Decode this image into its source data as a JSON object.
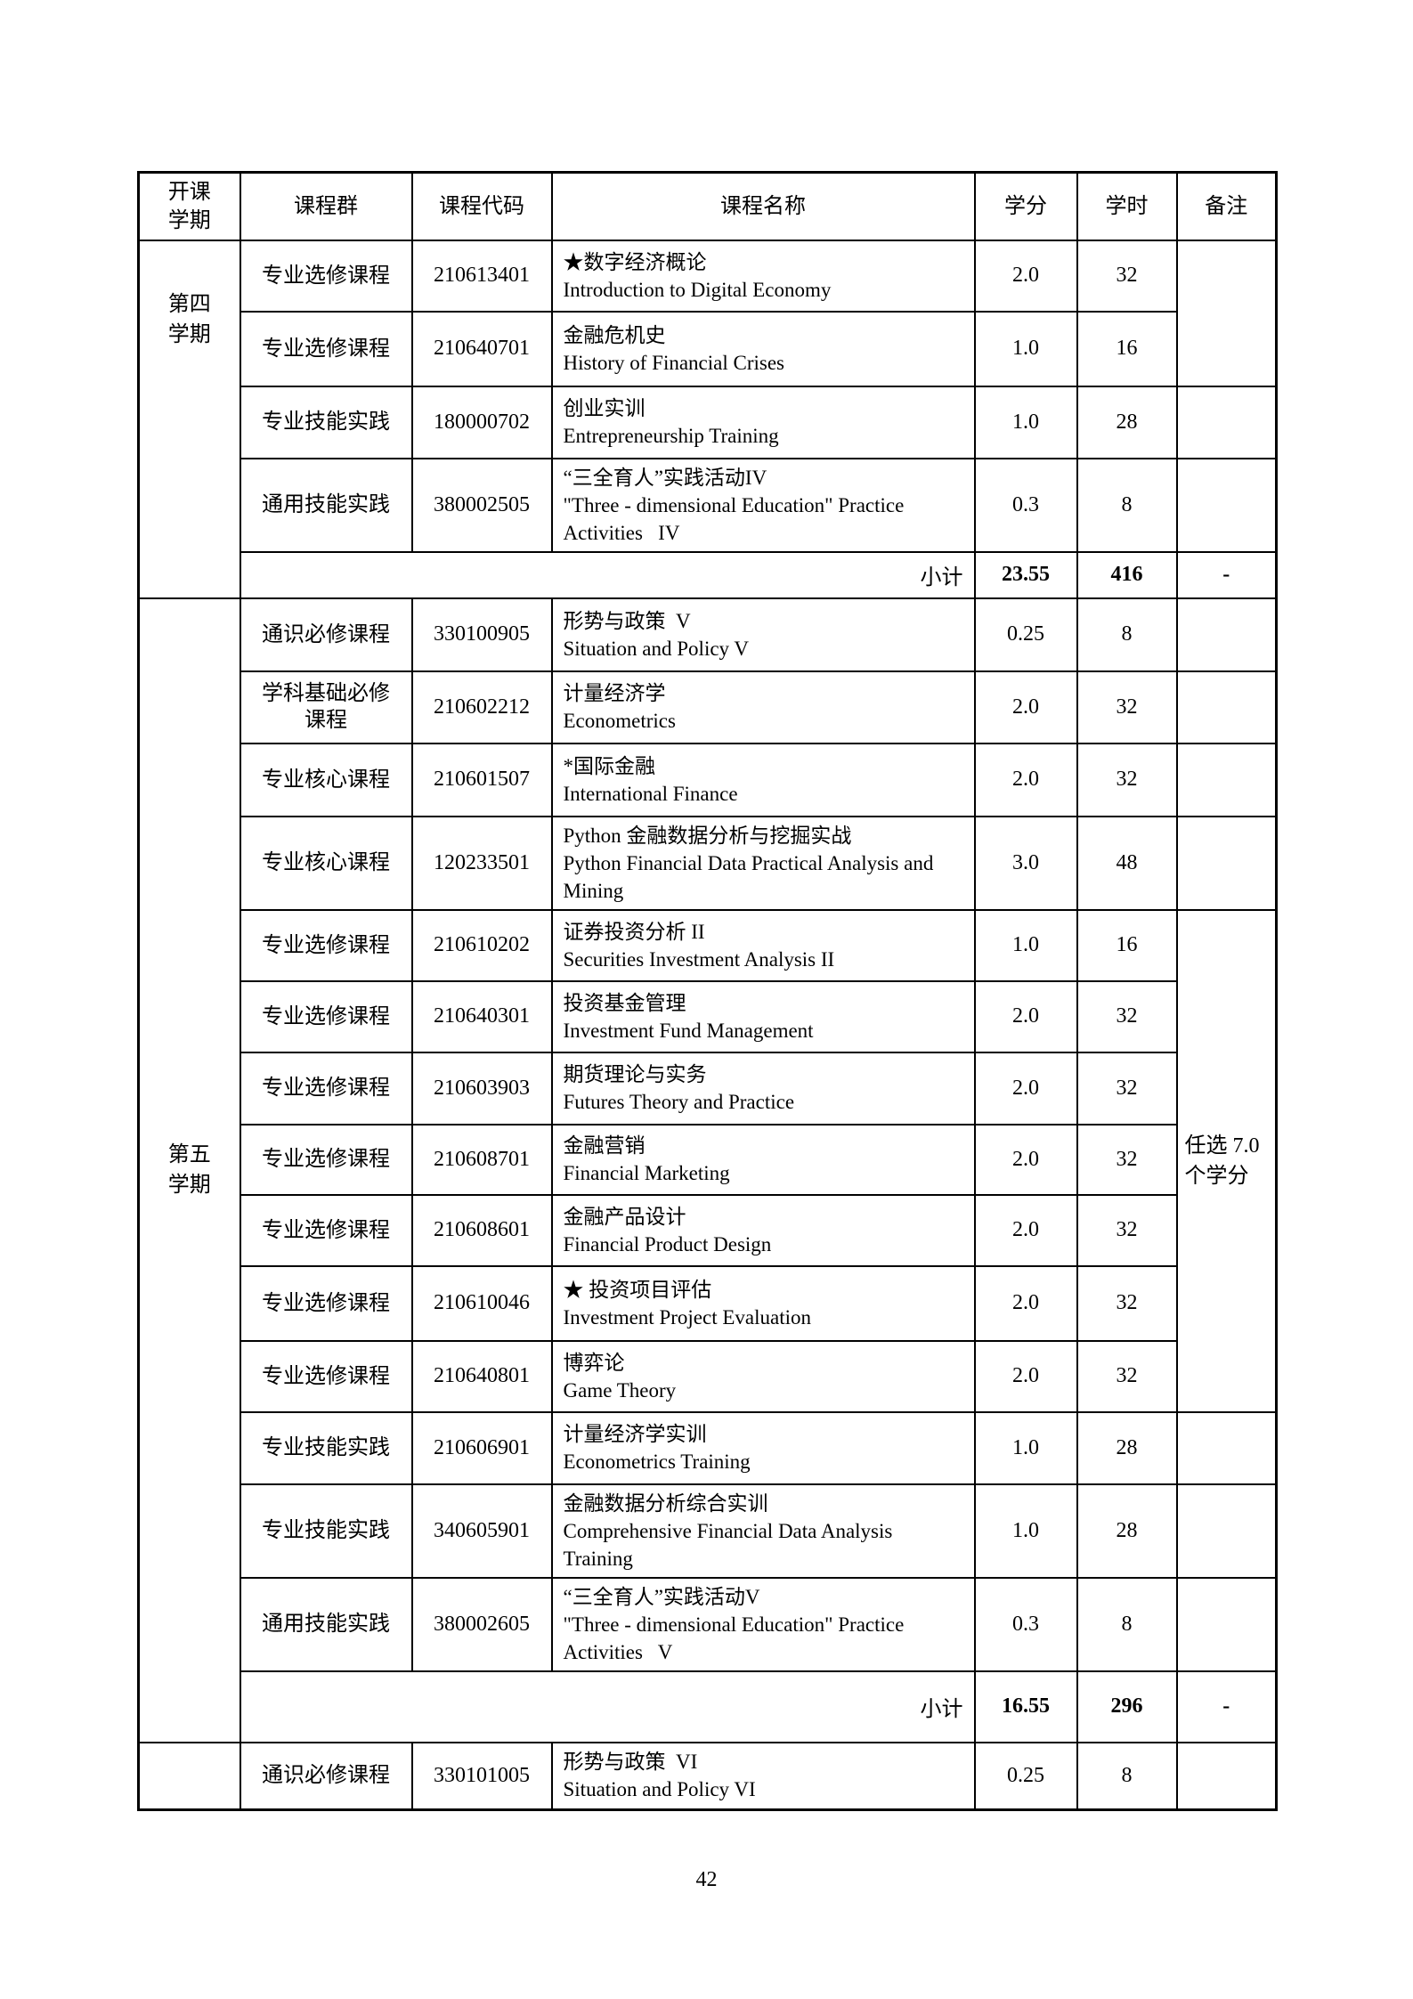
{
  "page": {
    "number": "42"
  },
  "table": {
    "headers": [
      "开课\n学期",
      "课程群",
      "课程代码",
      "课程名称",
      "学分",
      "学时",
      "备注"
    ],
    "rows": [
      {
        "type": "course",
        "semester": {
          "label": "第四\n学期",
          "span": 5,
          "align": "top"
        },
        "group": "专业选修课程",
        "code": "210613401",
        "name_zh": "★数字经济概论",
        "name_en": "Introduction to Digital Economy",
        "credits": "2.0",
        "hours": "32",
        "remark": {
          "label": "",
          "span": 2
        }
      },
      {
        "type": "course",
        "group": "专业选修课程",
        "code": "210640701",
        "name_zh": "金融危机史",
        "name_en": "History of Financial Crises",
        "credits": "1.0",
        "hours": "16"
      },
      {
        "type": "course",
        "group": "专业技能实践",
        "code": "180000702",
        "name_zh": "创业实训",
        "name_en": "Entrepreneurship Training",
        "credits": "1.0",
        "hours": "28",
        "remark": {
          "label": "",
          "span": 1
        }
      },
      {
        "type": "course",
        "group": "通用技能实践",
        "code": "380002505",
        "name_zh": "“三全育人”实践活动IV",
        "name_en": "\"Three - dimensional Education\" Practice\nActivities   IV",
        "credits": "0.3",
        "hours": "8",
        "remark": {
          "label": "",
          "span": 1
        }
      },
      {
        "type": "subtotal",
        "label": "小计",
        "credits": "23.55",
        "hours": "416",
        "remark": "-"
      },
      {
        "type": "course",
        "semester": {
          "label": "第五\n学期",
          "span": 15
        },
        "group": "通识必修课程",
        "code": "330100905",
        "name_zh": "形势与政策  V",
        "name_en": "Situation and Policy V",
        "credits": "0.25",
        "hours": "8",
        "remark": {
          "label": "",
          "span": 1
        }
      },
      {
        "type": "course",
        "group": "学科基础必修\n课程",
        "code": "210602212",
        "name_zh": "计量经济学",
        "name_en": "Econometrics",
        "credits": "2.0",
        "hours": "32",
        "remark": {
          "label": "",
          "span": 1
        }
      },
      {
        "type": "course",
        "group": "专业核心课程",
        "code": "210601507",
        "name_zh": "*国际金融",
        "name_en": "International Finance",
        "credits": "2.0",
        "hours": "32",
        "remark": {
          "label": "",
          "span": 1
        }
      },
      {
        "type": "course",
        "group": "专业核心课程",
        "code": "120233501",
        "name_zh": "Python 金融数据分析与挖掘实战",
        "name_en": "Python Financial Data Practical Analysis and\nMining",
        "credits": "3.0",
        "hours": "48",
        "remark": {
          "label": "",
          "span": 1
        }
      },
      {
        "type": "course",
        "group": "专业选修课程",
        "code": "210610202",
        "name_zh": "证券投资分析 II",
        "name_en": "Securities Investment Analysis II",
        "credits": "1.0",
        "hours": "16",
        "remark": {
          "label": "任选 7.0\n个学分",
          "span": 7
        }
      },
      {
        "type": "course",
        "group": "专业选修课程",
        "code": "210640301",
        "name_zh": "投资基金管理",
        "name_en": "Investment Fund Management",
        "credits": "2.0",
        "hours": "32"
      },
      {
        "type": "course",
        "group": "专业选修课程",
        "code": "210603903",
        "name_zh": "期货理论与实务",
        "name_en": "Futures Theory and Practice",
        "credits": "2.0",
        "hours": "32"
      },
      {
        "type": "course",
        "group": "专业选修课程",
        "code": "210608701",
        "name_zh": "金融营销",
        "name_en": "Financial Marketing",
        "credits": "2.0",
        "hours": "32"
      },
      {
        "type": "course",
        "group": "专业选修课程",
        "code": "210608601",
        "name_zh": "金融产品设计",
        "name_en": "Financial Product Design",
        "credits": "2.0",
        "hours": "32"
      },
      {
        "type": "course",
        "group": "专业选修课程",
        "code": "210610046",
        "name_zh": "★ 投资项目评估",
        "name_en": "Investment Project Evaluation",
        "credits": "2.0",
        "hours": "32"
      },
      {
        "type": "course",
        "group": "专业选修课程",
        "code": "210640801",
        "name_zh": "博弈论",
        "name_en": "Game Theory",
        "credits": "2.0",
        "hours": "32"
      },
      {
        "type": "course",
        "group": "专业技能实践",
        "code": "210606901",
        "name_zh": "计量经济学实训",
        "name_en": "Econometrics Training",
        "credits": "1.0",
        "hours": "28",
        "remark": {
          "label": "",
          "span": 1
        }
      },
      {
        "type": "course",
        "group": "专业技能实践",
        "code": "340605901",
        "name_zh": "金融数据分析综合实训",
        "name_en": "Comprehensive Financial Data Analysis\nTraining",
        "credits": "1.0",
        "hours": "28",
        "remark": {
          "label": "",
          "span": 1
        }
      },
      {
        "type": "course",
        "group": "通用技能实践",
        "code": "380002605",
        "name_zh": "“三全育人”实践活动V",
        "name_en": "\"Three - dimensional Education\" Practice\nActivities   V",
        "credits": "0.3",
        "hours": "8",
        "remark": {
          "label": "",
          "span": 1
        }
      },
      {
        "type": "subtotal",
        "label": "小计",
        "credits": "16.55",
        "hours": "296",
        "remark": "-"
      },
      {
        "type": "course",
        "semester": {
          "label": "",
          "span": 1
        },
        "group": "通识必修课程",
        "code": "330101005",
        "name_zh": "形势与政策  VI",
        "name_en": "Situation and Policy VI",
        "credits": "0.25",
        "hours": "8",
        "remark": {
          "label": "",
          "span": 1
        }
      }
    ]
  }
}
